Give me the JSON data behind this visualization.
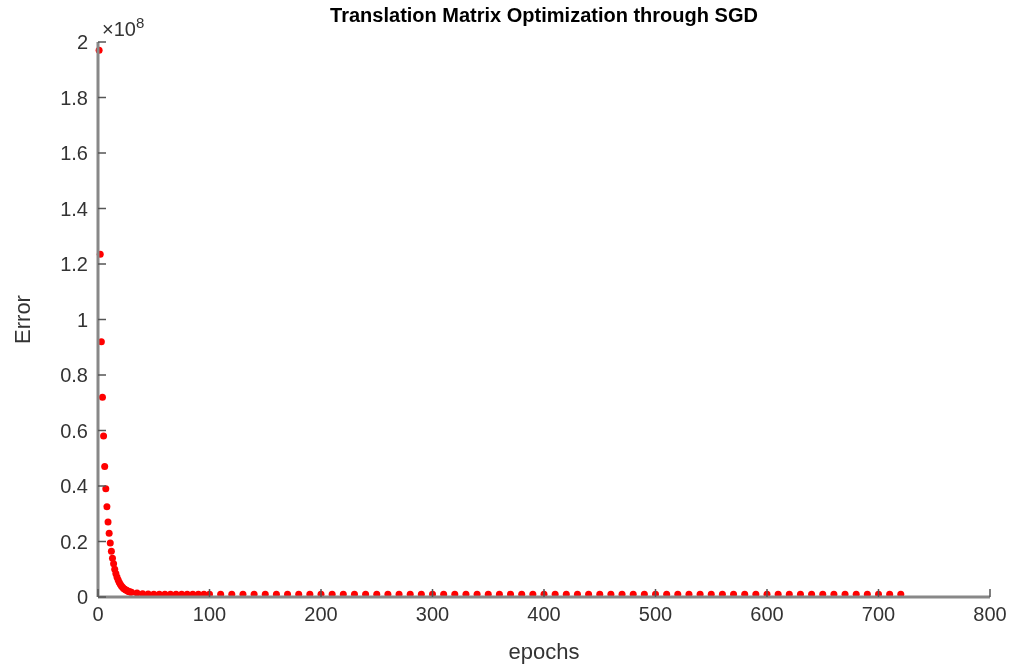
{
  "chart_data": {
    "type": "scatter",
    "title": "Translation Matrix Optimization through SGD",
    "xlabel": "epochs",
    "ylabel": "Error",
    "annotations": [
      "×10$^{8}$"
    ],
    "marker": "circle",
    "grid": false,
    "xlim": [
      0,
      800
    ],
    "xticks": [
      0,
      100,
      200,
      300,
      400,
      500,
      600,
      700,
      800
    ],
    "ylim": [
      0,
      2
    ],
    "yticks": [
      0,
      0.2,
      0.4,
      0.6,
      0.8,
      1,
      1.2,
      1.4,
      1.6,
      1.8,
      2
    ],
    "series": [
      {
        "color": "#ff0000",
        "x": [
          1,
          2,
          3,
          4,
          5,
          6,
          7,
          8,
          9,
          10,
          11,
          12,
          13,
          14,
          15,
          16,
          17,
          18,
          19,
          20,
          21,
          22,
          23,
          24,
          25,
          26,
          27,
          28,
          29,
          30,
          35,
          40,
          45,
          50,
          55,
          60,
          65,
          70,
          75,
          80,
          85,
          90,
          95,
          100,
          110,
          120,
          130,
          140,
          150,
          160,
          170,
          180,
          190,
          200,
          210,
          220,
          230,
          240,
          250,
          260,
          270,
          280,
          290,
          300,
          310,
          320,
          330,
          340,
          350,
          360,
          370,
          380,
          390,
          400,
          410,
          420,
          430,
          440,
          450,
          460,
          470,
          480,
          490,
          500,
          510,
          520,
          530,
          540,
          550,
          560,
          570,
          580,
          590,
          600,
          610,
          620,
          630,
          640,
          650,
          660,
          670,
          680,
          690,
          700,
          710,
          720
        ],
        "values": [
          1.97,
          1.235,
          0.92,
          0.72,
          0.58,
          0.47,
          0.39,
          0.325,
          0.27,
          0.23,
          0.195,
          0.165,
          0.14,
          0.12,
          0.1,
          0.085,
          0.072,
          0.062,
          0.053,
          0.046,
          0.04,
          0.035,
          0.031,
          0.028,
          0.025,
          0.023,
          0.021,
          0.019,
          0.018,
          0.017,
          0.014,
          0.012,
          0.011,
          0.01,
          0.01,
          0.01,
          0.01,
          0.01,
          0.01,
          0.01,
          0.01,
          0.01,
          0.01,
          0.01,
          0.01,
          0.01,
          0.01,
          0.01,
          0.01,
          0.01,
          0.01,
          0.01,
          0.01,
          0.01,
          0.01,
          0.01,
          0.01,
          0.01,
          0.01,
          0.01,
          0.01,
          0.01,
          0.01,
          0.01,
          0.01,
          0.01,
          0.01,
          0.01,
          0.01,
          0.01,
          0.01,
          0.01,
          0.01,
          0.01,
          0.01,
          0.01,
          0.01,
          0.01,
          0.01,
          0.01,
          0.01,
          0.01,
          0.01,
          0.01,
          0.01,
          0.01,
          0.01,
          0.01,
          0.01,
          0.01,
          0.01,
          0.01,
          0.01,
          0.01,
          0.01,
          0.01,
          0.01,
          0.01,
          0.01,
          0.01,
          0.01,
          0.01,
          0.01,
          0.01,
          0.01,
          0.01
        ]
      }
    ]
  }
}
